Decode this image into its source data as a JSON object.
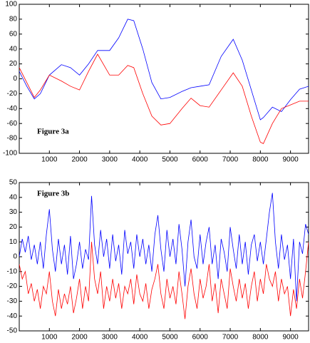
{
  "chart_data": [
    {
      "type": "line",
      "annotation": "Figure 3a",
      "x": [
        0,
        250,
        500,
        700,
        1000,
        1400,
        1700,
        2000,
        2300,
        2600,
        3000,
        3300,
        3600,
        3800,
        4100,
        4400,
        4700,
        5000,
        5400,
        5700,
        6000,
        6300,
        6700,
        7100,
        7400,
        7700,
        8000,
        8100,
        8400,
        8700,
        9000,
        9300,
        9600
      ],
      "series": [
        {
          "color": "#0000ff",
          "values": [
            10,
            -10,
            -27,
            -20,
            5,
            19,
            15,
            5,
            20,
            38,
            38,
            55,
            80,
            78,
            40,
            -5,
            -27,
            -25,
            -17,
            -12,
            -10,
            -8,
            30,
            53,
            25,
            -15,
            -55,
            -52,
            -38,
            -44,
            -28,
            -14,
            -10
          ]
        },
        {
          "color": "#ff0000",
          "values": [
            15,
            -5,
            -25,
            -15,
            5,
            -3,
            -10,
            -15,
            10,
            33,
            5,
            5,
            18,
            15,
            -20,
            -50,
            -62,
            -60,
            -40,
            -26,
            -36,
            -38,
            -15,
            8,
            -10,
            -50,
            -85,
            -87,
            -60,
            -40,
            -35,
            -30,
            -30
          ]
        }
      ],
      "xlim": [
        0,
        9600
      ],
      "xticks": [
        1000,
        2000,
        3000,
        4000,
        5000,
        6000,
        7000,
        8000,
        9000
      ],
      "ylim": [
        -100,
        100
      ],
      "yticks": [
        -100,
        -80,
        -60,
        -40,
        -20,
        0,
        20,
        40,
        60,
        80,
        100
      ]
    },
    {
      "type": "line",
      "annotation": "Figure 3b",
      "x": [
        0,
        100,
        200,
        300,
        400,
        500,
        600,
        700,
        800,
        900,
        1000,
        1100,
        1200,
        1300,
        1400,
        1500,
        1600,
        1700,
        1800,
        1900,
        2000,
        2100,
        2200,
        2300,
        2400,
        2500,
        2600,
        2700,
        2800,
        2900,
        3000,
        3100,
        3200,
        3300,
        3400,
        3500,
        3600,
        3700,
        3800,
        3900,
        4000,
        4100,
        4200,
        4300,
        4400,
        4500,
        4600,
        4700,
        4800,
        4900,
        5000,
        5100,
        5200,
        5300,
        5400,
        5500,
        5600,
        5700,
        5800,
        5900,
        6000,
        6100,
        6200,
        6300,
        6400,
        6500,
        6600,
        6700,
        6800,
        6900,
        7000,
        7100,
        7200,
        7300,
        7400,
        7500,
        7600,
        7700,
        7800,
        7900,
        8000,
        8100,
        8200,
        8300,
        8400,
        8500,
        8600,
        8700,
        8800,
        8900,
        9000,
        9100,
        9200,
        9300,
        9400,
        9500,
        9600
      ],
      "series": [
        {
          "color": "#0000ff",
          "values": [
            0,
            12,
            3,
            14,
            -2,
            8,
            -5,
            10,
            -8,
            15,
            32,
            5,
            -10,
            12,
            -5,
            8,
            -12,
            14,
            -15,
            -5,
            10,
            -8,
            5,
            -2,
            41,
            8,
            -5,
            18,
            0,
            12,
            -8,
            15,
            -3,
            8,
            -12,
            18,
            2,
            10,
            -8,
            15,
            0,
            12,
            -5,
            8,
            -10,
            15,
            28,
            5,
            -10,
            18,
            0,
            12,
            -5,
            22,
            5,
            -20,
            10,
            25,
            0,
            -8,
            15,
            -5,
            10,
            20,
            -5,
            8,
            -15,
            12,
            3,
            -10,
            20,
            5,
            -8,
            15,
            -5,
            10,
            -12,
            8,
            15,
            -3,
            10,
            -5,
            12,
            30,
            43,
            10,
            -8,
            15,
            -2,
            8,
            -15,
            12,
            -30,
            10,
            2,
            22,
            15
          ]
        },
        {
          "color": "#ff0000",
          "values": [
            -5,
            -15,
            -10,
            -25,
            -18,
            -30,
            -22,
            -35,
            -20,
            -25,
            -10,
            -30,
            -40,
            -22,
            -35,
            -25,
            -32,
            -20,
            -38,
            -28,
            -15,
            -35,
            -20,
            -30,
            10,
            -15,
            -25,
            -10,
            -35,
            -20,
            -30,
            -15,
            -28,
            -18,
            -35,
            -20,
            -25,
            -15,
            -32,
            -12,
            -25,
            -30,
            -18,
            -35,
            -22,
            -15,
            -5,
            -25,
            -35,
            -15,
            -28,
            -20,
            -32,
            -10,
            -25,
            -42,
            -20,
            -8,
            -25,
            -35,
            -15,
            -28,
            -20,
            -5,
            -30,
            -18,
            -38,
            -15,
            -25,
            -35,
            -8,
            -20,
            -30,
            -15,
            -28,
            -18,
            -35,
            -20,
            -10,
            -30,
            -15,
            -25,
            -5,
            -15,
            -20,
            -10,
            -30,
            -15,
            -25,
            -20,
            -40,
            -22,
            -35,
            -15,
            -28,
            -10,
            10
          ]
        }
      ],
      "xlim": [
        0,
        9600
      ],
      "xticks": [
        1000,
        2000,
        3000,
        4000,
        5000,
        6000,
        7000,
        8000,
        9000
      ],
      "ylim": [
        -50,
        50
      ],
      "yticks": [
        -50,
        -40,
        -30,
        -20,
        -10,
        0,
        10,
        20,
        30,
        40,
        50
      ]
    }
  ]
}
